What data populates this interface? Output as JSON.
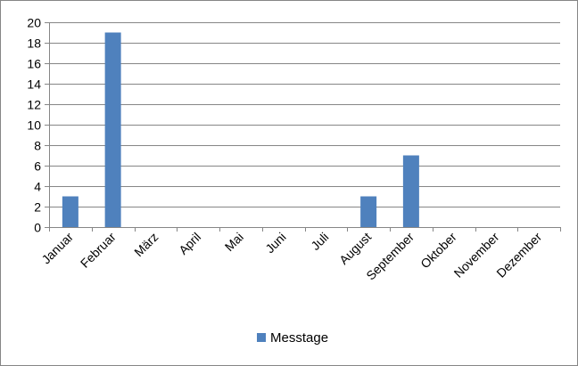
{
  "chart_data": {
    "type": "bar",
    "categories": [
      "Januar",
      "Februar",
      "März",
      "April",
      "Mai",
      "Juni",
      "Juli",
      "August",
      "September",
      "Oktober",
      "November",
      "Dezember"
    ],
    "series": [
      {
        "name": "Messtage",
        "values": [
          3,
          19,
          0,
          0,
          0,
          0,
          0,
          3,
          7,
          0,
          0,
          0
        ],
        "color": "#4F81BD"
      }
    ],
    "ylim": [
      0,
      20
    ],
    "yticks": [
      0,
      2,
      4,
      6,
      8,
      10,
      12,
      14,
      16,
      18,
      20
    ],
    "grid": true,
    "legend": "bottom-center"
  }
}
